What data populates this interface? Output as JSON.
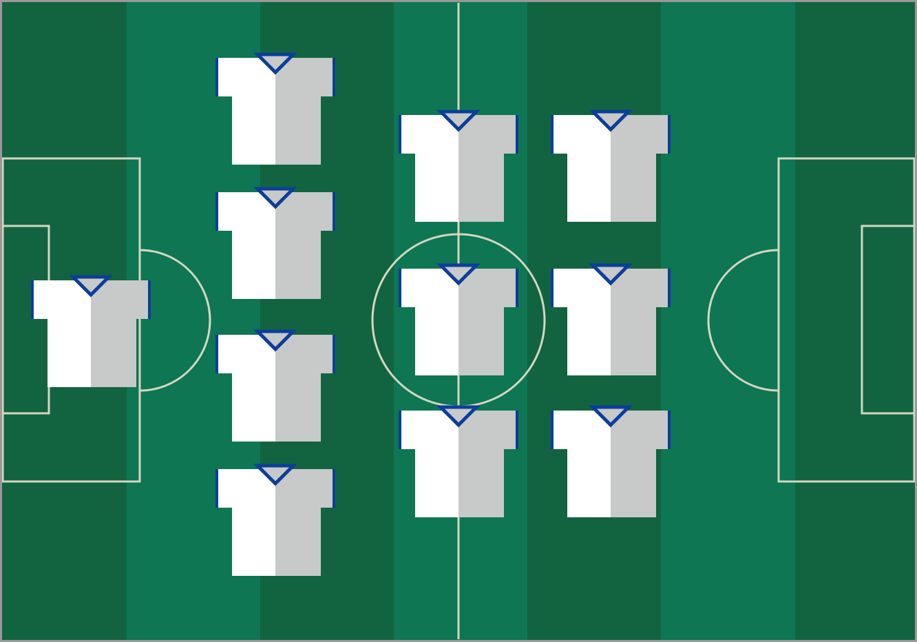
{
  "pitch": {
    "colors": {
      "stripe_dark": "#126440",
      "stripe_light": "#0e7652",
      "lines": "#d6d6c4",
      "border": "#999999"
    },
    "stripe_count": 7
  },
  "formation": {
    "shape": "1-4-3-3",
    "kit": {
      "shirt_left": "#ffffff",
      "shirt_right": "#c8c9c9",
      "trim": "#0c3e99"
    },
    "players": [
      {
        "id": "goalkeeper",
        "role": "GK"
      },
      {
        "id": "defender-1",
        "role": "DEF"
      },
      {
        "id": "defender-2",
        "role": "DEF"
      },
      {
        "id": "defender-3",
        "role": "DEF"
      },
      {
        "id": "defender-4",
        "role": "DEF"
      },
      {
        "id": "midfielder-1",
        "role": "MID"
      },
      {
        "id": "midfielder-2",
        "role": "MID"
      },
      {
        "id": "midfielder-3",
        "role": "MID"
      },
      {
        "id": "forward-1",
        "role": "FWD"
      },
      {
        "id": "forward-2",
        "role": "FWD"
      },
      {
        "id": "forward-3",
        "role": "FWD"
      }
    ]
  }
}
